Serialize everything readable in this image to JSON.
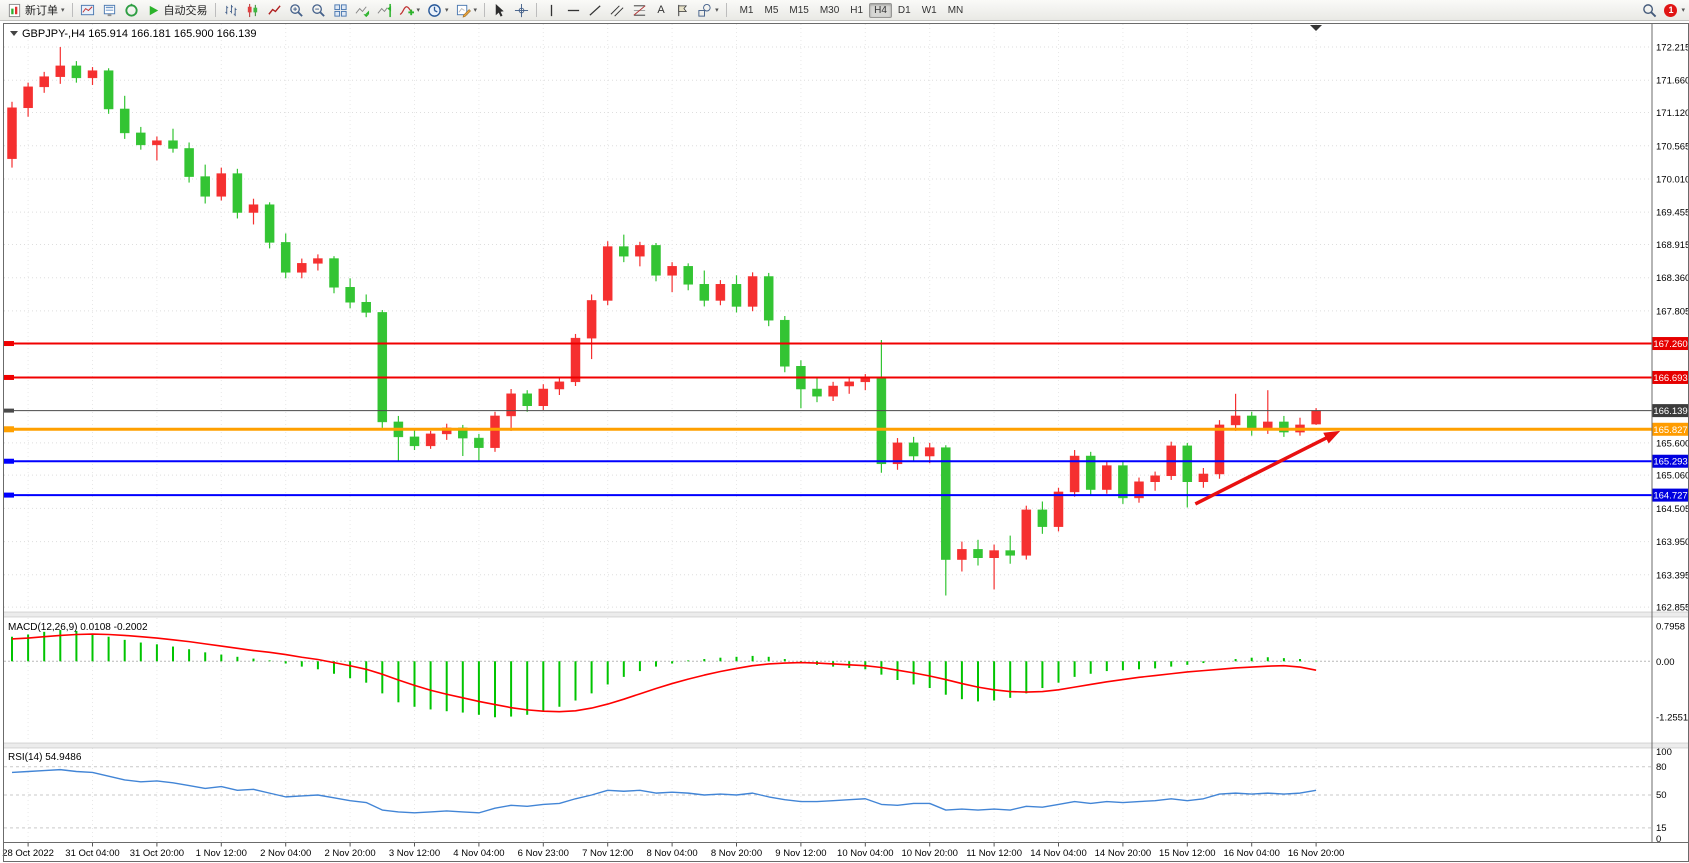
{
  "toolbar": {
    "new_order": {
      "label": "新订单"
    },
    "autotrading": {
      "label": "自动交易"
    },
    "timeframes": {
      "items": [
        "M1",
        "M5",
        "M15",
        "M30",
        "H1",
        "H4",
        "D1",
        "W1",
        "MN"
      ],
      "active": "H4"
    },
    "notification": {
      "count": "1"
    },
    "icon_names": [
      "new-order-icon",
      "charts-icon",
      "market-watch-icon",
      "navigator-icon",
      "autotrading-icon",
      "bar-chart-icon",
      "candlestick-chart-icon",
      "line-chart-icon",
      "zoom-in-icon",
      "zoom-out-icon",
      "tile-windows-icon",
      "auto-scroll-icon",
      "chart-shift-icon",
      "indicators-icon",
      "periods-icon",
      "templates-icon",
      "cursor-icon",
      "crosshair-icon",
      "vertical-line-icon",
      "horizontal-line-icon",
      "trendline-icon",
      "channel-icon",
      "fibonacci-icon",
      "text-icon",
      "label-icon",
      "shapes-icon",
      "search-icon",
      "notification-badge",
      "panel-toggle-icon"
    ]
  },
  "chart": {
    "symbol_bar": {
      "symbol": "GBPJPY-",
      "timeframe": "H4",
      "open": "165.914",
      "high": "166.181",
      "low": "165.900",
      "close": "166.139"
    },
    "price_axis": {
      "grid_labels": [
        "172.215",
        "171.660",
        "171.120",
        "170.565",
        "170.010",
        "169.455",
        "168.915",
        "168.360",
        "167.805",
        "165.600",
        "165.060",
        "164.505",
        "163.950",
        "163.395",
        "162.855"
      ],
      "tags": [
        {
          "label": "167.260",
          "color": "#e60000",
          "text": "#ffffff"
        },
        {
          "label": "166.693",
          "color": "#e60000",
          "text": "#ffffff"
        },
        {
          "label": "166.139",
          "color": "#3c3c3c",
          "text": "#ffffff"
        },
        {
          "label": "165.827",
          "color": "#ff9c00",
          "text": "#ffffff"
        },
        {
          "label": "165.293",
          "color": "#0000e0",
          "text": "#ffffff"
        },
        {
          "label": "164.727",
          "color": "#0000e0",
          "text": "#ffffff"
        }
      ]
    },
    "hlines": [
      {
        "price": 167.26,
        "color": "#f00000",
        "width": 2,
        "role": "resistance-line"
      },
      {
        "price": 166.693,
        "color": "#f00000",
        "width": 2,
        "role": "resistance-line"
      },
      {
        "price": 166.139,
        "color": "#4a4a4a",
        "width": 1,
        "role": "current-price-line"
      },
      {
        "price": 165.827,
        "color": "#ffa000",
        "width": 3,
        "role": "pivot-line"
      },
      {
        "price": 165.293,
        "color": "#0000ff",
        "width": 2,
        "role": "support-line"
      },
      {
        "price": 164.727,
        "color": "#0000ff",
        "width": 2,
        "role": "support-line"
      }
    ],
    "trend_arrow": {
      "from_index": 73.5,
      "from_price": 164.58,
      "to_index": 82.5,
      "to_price": 165.8,
      "color": "#e81010"
    }
  },
  "chart_data": [
    {
      "type": "candlestick",
      "title": "GBPJPY-,H4",
      "ylim": [
        162.79,
        172.6
      ],
      "colors": {
        "bull": "#f53030",
        "bear": "#33c433"
      },
      "ohlc": [
        [
          170.35,
          171.3,
          170.2,
          171.2
        ],
        [
          171.2,
          171.62,
          171.05,
          171.55
        ],
        [
          171.55,
          171.8,
          171.45,
          171.72
        ],
        [
          171.72,
          172.215,
          171.6,
          171.9
        ],
        [
          171.9,
          171.98,
          171.62,
          171.7
        ],
        [
          171.7,
          171.88,
          171.58,
          171.82
        ],
        [
          171.82,
          171.86,
          171.1,
          171.18
        ],
        [
          171.18,
          171.4,
          170.68,
          170.78
        ],
        [
          170.78,
          170.88,
          170.5,
          170.58
        ],
        [
          170.58,
          170.72,
          170.32,
          170.65
        ],
        [
          170.65,
          170.85,
          170.45,
          170.52
        ],
        [
          170.52,
          170.62,
          169.95,
          170.05
        ],
        [
          170.05,
          170.25,
          169.6,
          169.72
        ],
        [
          169.72,
          170.2,
          169.65,
          170.1
        ],
        [
          170.1,
          170.18,
          169.35,
          169.45
        ],
        [
          169.45,
          169.68,
          169.25,
          169.58
        ],
        [
          169.58,
          169.62,
          168.85,
          168.95
        ],
        [
          168.95,
          169.1,
          168.35,
          168.45
        ],
        [
          168.45,
          168.68,
          168.35,
          168.6
        ],
        [
          168.6,
          168.75,
          168.48,
          168.68
        ],
        [
          168.68,
          168.72,
          168.1,
          168.2
        ],
        [
          168.2,
          168.35,
          167.85,
          167.95
        ],
        [
          167.95,
          168.08,
          167.7,
          167.78
        ],
        [
          167.78,
          167.82,
          165.85,
          165.95
        ],
        [
          165.95,
          166.05,
          165.3,
          165.7
        ],
        [
          165.7,
          165.82,
          165.48,
          165.55
        ],
        [
          165.55,
          165.8,
          165.5,
          165.75
        ],
        [
          165.75,
          165.92,
          165.65,
          165.85
        ],
        [
          165.85,
          165.9,
          165.38,
          165.68
        ],
        [
          165.68,
          165.75,
          165.3,
          165.52
        ],
        [
          165.52,
          166.12,
          165.45,
          166.05
        ],
        [
          166.05,
          166.5,
          165.8,
          166.42
        ],
        [
          166.42,
          166.48,
          166.12,
          166.22
        ],
        [
          166.22,
          166.58,
          166.15,
          166.5
        ],
        [
          166.5,
          166.68,
          166.4,
          166.62
        ],
        [
          166.62,
          167.42,
          166.55,
          167.35
        ],
        [
          167.35,
          168.08,
          167.0,
          167.98
        ],
        [
          167.98,
          168.97,
          167.9,
          168.88
        ],
        [
          168.88,
          169.08,
          168.62,
          168.72
        ],
        [
          168.72,
          168.96,
          168.55,
          168.9
        ],
        [
          168.9,
          168.94,
          168.3,
          168.4
        ],
        [
          168.4,
          168.62,
          168.12,
          168.55
        ],
        [
          168.55,
          168.6,
          168.15,
          168.25
        ],
        [
          168.25,
          168.48,
          167.88,
          167.98
        ],
        [
          167.98,
          168.32,
          167.9,
          168.25
        ],
        [
          168.25,
          168.4,
          167.78,
          167.88
        ],
        [
          167.88,
          168.45,
          167.8,
          168.38
        ],
        [
          168.38,
          168.44,
          167.55,
          167.65
        ],
        [
          167.65,
          167.72,
          166.78,
          166.88
        ],
        [
          166.88,
          166.98,
          166.18,
          166.5
        ],
        [
          166.5,
          166.68,
          166.28,
          166.38
        ],
        [
          166.38,
          166.62,
          166.3,
          166.55
        ],
        [
          166.55,
          166.7,
          166.42,
          166.62
        ],
        [
          166.62,
          166.75,
          166.48,
          166.68
        ],
        [
          166.68,
          167.32,
          165.1,
          165.25
        ],
        [
          165.25,
          165.68,
          165.15,
          165.6
        ],
        [
          165.6,
          165.7,
          165.28,
          165.38
        ],
        [
          165.38,
          165.6,
          165.26,
          165.52
        ],
        [
          165.52,
          165.56,
          163.05,
          163.65
        ],
        [
          163.65,
          163.95,
          163.45,
          163.82
        ],
        [
          163.82,
          163.98,
          163.55,
          163.68
        ],
        [
          163.68,
          163.9,
          163.15,
          163.8
        ],
        [
          163.8,
          164.05,
          163.58,
          163.72
        ],
        [
          163.72,
          164.55,
          163.65,
          164.48
        ],
        [
          164.48,
          164.62,
          164.08,
          164.2
        ],
        [
          164.2,
          164.85,
          164.12,
          164.78
        ],
        [
          164.78,
          165.48,
          164.7,
          165.38
        ],
        [
          165.38,
          165.45,
          164.72,
          164.82
        ],
        [
          164.82,
          165.3,
          164.75,
          165.22
        ],
        [
          165.22,
          165.28,
          164.58,
          164.68
        ],
        [
          164.68,
          165.02,
          164.6,
          164.95
        ],
        [
          164.95,
          165.12,
          164.8,
          165.05
        ],
        [
          165.05,
          165.62,
          164.98,
          165.55
        ],
        [
          165.55,
          165.6,
          164.52,
          164.95
        ],
        [
          164.95,
          165.18,
          164.85,
          165.08
        ],
        [
          165.08,
          165.98,
          165.0,
          165.9
        ],
        [
          165.9,
          166.42,
          165.8,
          166.05
        ],
        [
          166.05,
          166.12,
          165.72,
          165.82
        ],
        [
          165.82,
          166.48,
          165.75,
          165.95
        ],
        [
          165.95,
          166.05,
          165.7,
          165.78
        ],
        [
          165.78,
          166.02,
          165.72,
          165.9
        ],
        [
          165.914,
          166.181,
          165.9,
          166.139
        ]
      ],
      "time_labels": {
        "indices": [
          1,
          5,
          9,
          13,
          17,
          21,
          25,
          29,
          33,
          37,
          41,
          45,
          49,
          53,
          57,
          61,
          65,
          69,
          73,
          77,
          81
        ],
        "labels": [
          "28 Oct 2022",
          "31 Oct 04:00",
          "31 Oct 20:00",
          "1 Nov 12:00",
          "2 Nov 04:00",
          "2 Nov 20:00",
          "3 Nov 12:00",
          "4 Nov 04:00",
          "6 Nov 23:00",
          "7 Nov 12:00",
          "8 Nov 04:00",
          "8 Nov 20:00",
          "9 Nov 12:00",
          "10 Nov 04:00",
          "10 Nov 20:00",
          "11 Nov 12:00",
          "14 Nov 04:00",
          "14 Nov 20:00",
          "15 Nov 12:00",
          "16 Nov 04:00",
          "16 Nov 20:00"
        ]
      }
    },
    {
      "type": "bar",
      "name": "MACD(12,26,9)",
      "current": "0.0108",
      "signal_current": "-0.2002",
      "scale_labels": [
        "0.7958",
        "0.00",
        "-1.2551"
      ],
      "ylim": [
        -1.81,
        0.97
      ],
      "colors": {
        "hist": "#00c400",
        "signal": "#ff0000"
      },
      "values": [
        0.55,
        0.6,
        0.66,
        0.7,
        0.68,
        0.62,
        0.55,
        0.48,
        0.42,
        0.38,
        0.33,
        0.27,
        0.2,
        0.15,
        0.1,
        0.06,
        0.02,
        -0.05,
        -0.12,
        -0.18,
        -0.28,
        -0.38,
        -0.48,
        -0.72,
        -0.92,
        -1.02,
        -1.08,
        -1.12,
        -1.15,
        -1.2,
        -1.2551,
        -1.24,
        -1.2,
        -1.12,
        -1.02,
        -0.88,
        -0.72,
        -0.52,
        -0.35,
        -0.22,
        -0.12,
        -0.05,
        0.02,
        0.05,
        0.08,
        0.1,
        0.12,
        0.1,
        0.05,
        -0.02,
        -0.08,
        -0.12,
        -0.15,
        -0.18,
        -0.3,
        -0.42,
        -0.52,
        -0.6,
        -0.75,
        -0.85,
        -0.9,
        -0.88,
        -0.82,
        -0.72,
        -0.6,
        -0.48,
        -0.35,
        -0.28,
        -0.22,
        -0.2,
        -0.18,
        -0.16,
        -0.12,
        -0.08,
        -0.04,
        0.0,
        0.05,
        0.08,
        0.09,
        0.07,
        0.05,
        0.0108
      ],
      "signal": [
        0.5,
        0.52,
        0.55,
        0.58,
        0.6,
        0.61,
        0.6,
        0.58,
        0.55,
        0.52,
        0.48,
        0.44,
        0.39,
        0.34,
        0.29,
        0.24,
        0.2,
        0.15,
        0.09,
        0.04,
        -0.03,
        -0.1,
        -0.18,
        -0.29,
        -0.42,
        -0.54,
        -0.65,
        -0.74,
        -0.82,
        -0.9,
        -0.97,
        -1.04,
        -1.09,
        -1.12,
        -1.13,
        -1.11,
        -1.05,
        -0.96,
        -0.85,
        -0.73,
        -0.61,
        -0.5,
        -0.4,
        -0.31,
        -0.23,
        -0.16,
        -0.1,
        -0.06,
        -0.04,
        -0.03,
        -0.04,
        -0.06,
        -0.08,
        -0.1,
        -0.14,
        -0.2,
        -0.26,
        -0.33,
        -0.41,
        -0.5,
        -0.58,
        -0.64,
        -0.68,
        -0.69,
        -0.68,
        -0.64,
        -0.58,
        -0.52,
        -0.46,
        -0.41,
        -0.36,
        -0.32,
        -0.28,
        -0.24,
        -0.21,
        -0.18,
        -0.15,
        -0.13,
        -0.11,
        -0.1,
        -0.13,
        -0.2002
      ]
    },
    {
      "type": "line",
      "name": "RSI(14)",
      "current": "54.9486",
      "scale_labels": [
        "100",
        "80",
        "50",
        "15",
        "0"
      ],
      "levels": [
        80,
        50,
        15
      ],
      "ylim": [
        0,
        100
      ],
      "color": "#4285d6",
      "values": [
        74,
        75,
        76,
        77,
        75,
        74,
        70,
        66,
        64,
        65,
        63,
        60,
        57,
        59,
        55,
        56,
        52,
        48,
        49,
        50,
        47,
        44,
        42,
        34,
        32,
        31,
        32,
        33,
        32,
        31,
        36,
        39,
        38,
        40,
        41,
        46,
        50,
        55,
        54,
        55,
        52,
        53,
        52,
        50,
        51,
        50,
        52,
        48,
        45,
        43,
        43,
        44,
        45,
        46,
        40,
        39,
        41,
        41,
        34,
        35,
        34,
        35,
        34,
        38,
        37,
        40,
        43,
        41,
        43,
        42,
        43,
        44,
        46,
        44,
        46,
        51,
        52,
        51,
        52,
        51,
        52,
        54.9486
      ]
    }
  ]
}
